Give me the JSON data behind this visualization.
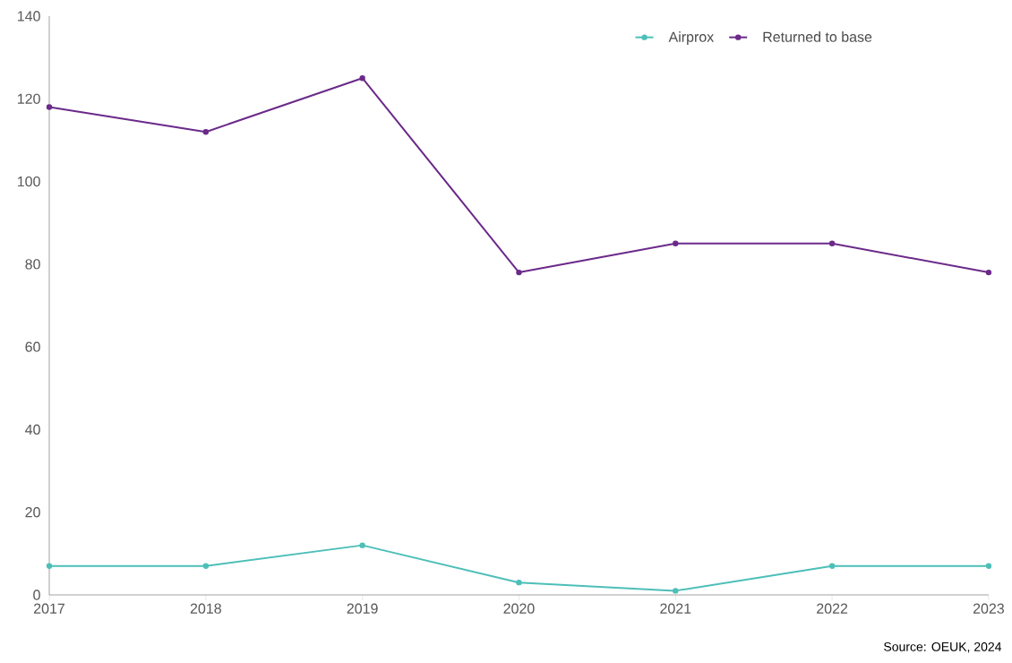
{
  "chart_data": {
    "type": "line",
    "categories": [
      "2017",
      "2018",
      "2019",
      "2020",
      "2021",
      "2022",
      "2023"
    ],
    "series": [
      {
        "name": "Airprox",
        "color": "#4dbfb8",
        "values": [
          7,
          7,
          12,
          3,
          1,
          7,
          7
        ]
      },
      {
        "name": "Returned to base",
        "color": "#6b2a8a",
        "values": [
          118,
          112,
          125,
          78,
          85,
          85,
          78
        ]
      }
    ],
    "ylim": [
      0,
      140
    ],
    "yticks": [
      0,
      20,
      40,
      60,
      80,
      100,
      120,
      140
    ],
    "grid": false,
    "legend": "top right",
    "marker": "circle",
    "line_style": "solid",
    "annotations": [
      "Source: OEUK, 2024"
    ]
  }
}
